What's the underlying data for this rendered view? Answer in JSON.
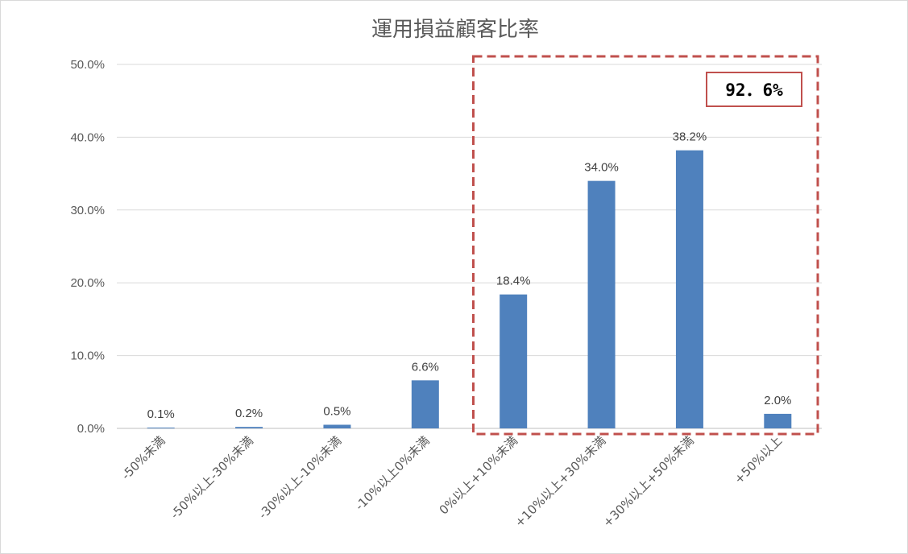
{
  "chart_data": {
    "type": "bar",
    "title": "運用損益顧客比率",
    "categories": [
      "-50%未満",
      "-50%以上-30%未満",
      "-30%以上-10%未満",
      "-10%以上0%未満",
      "0%以上+10%未満",
      "+10%以上+30%未満",
      "+30%以上+50%未満",
      "+50%以上"
    ],
    "values": [
      0.1,
      0.2,
      0.5,
      6.6,
      18.4,
      34.0,
      38.2,
      2.0
    ],
    "data_labels": [
      "0.1%",
      "0.2%",
      "0.5%",
      "6.6%",
      "18.4%",
      "34.0%",
      "38.2%",
      "2.0%"
    ],
    "ylim": [
      0,
      50
    ],
    "yticks": [
      0,
      10,
      20,
      30,
      40,
      50
    ],
    "ytick_labels": [
      "0.0%",
      "10.0%",
      "20.0%",
      "30.0%",
      "40.0%",
      "50.0%"
    ],
    "grid": true,
    "bar_color": "#4f81bd",
    "annotation": {
      "text": "92．6%",
      "highlight_range": [
        "0%以上+10%未満",
        "+50%以上"
      ],
      "box_color": "#c0504d"
    }
  }
}
